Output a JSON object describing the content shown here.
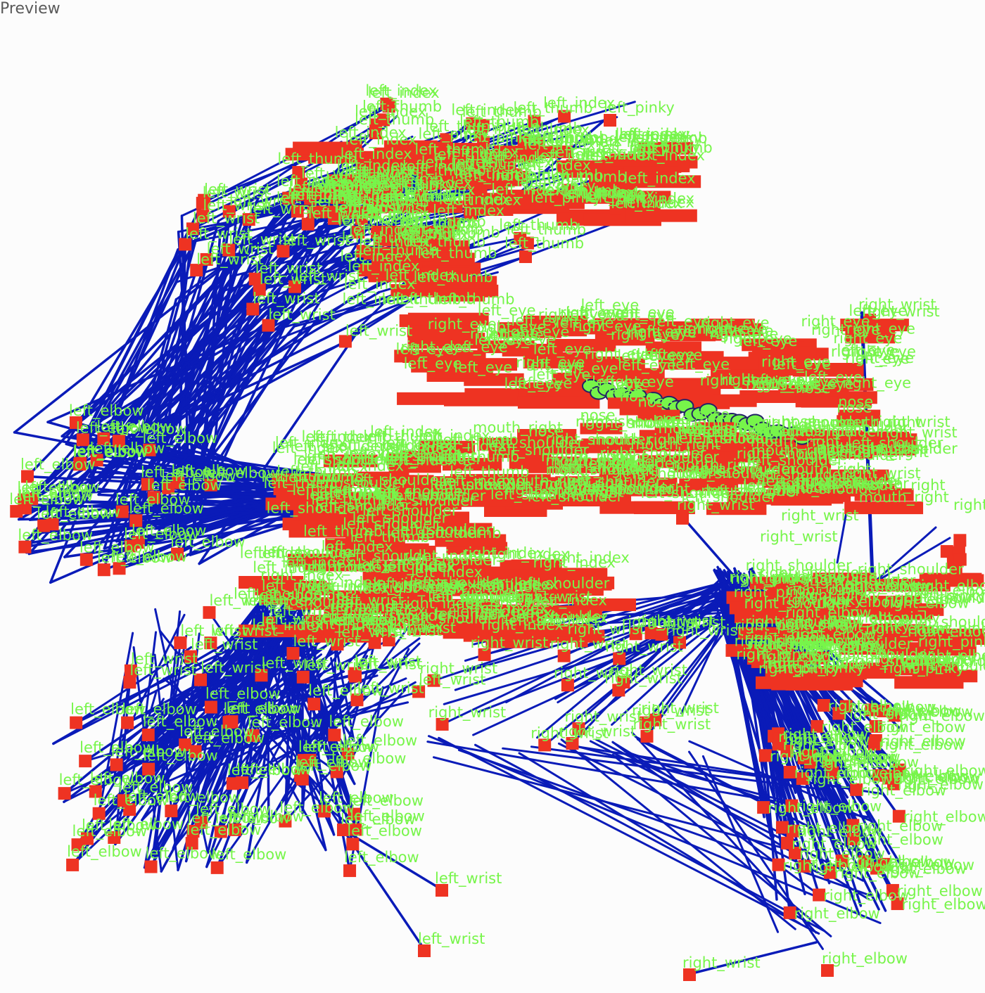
{
  "header": {
    "title": "Preview"
  },
  "colors": {
    "bone": "#0a1bb8",
    "joint": "#ee3322",
    "label": "#77f54a",
    "nose_ring": "#222266"
  },
  "labels": [
    {
      "text": "left_pinky"
    },
    {
      "text": "left_index"
    },
    {
      "text": "left_thumb"
    },
    {
      "text": "left_elbow"
    },
    {
      "text": "left_wrist"
    },
    {
      "text": "left_shoulder"
    },
    {
      "text": "right_wrist"
    },
    {
      "text": "right_elbow"
    },
    {
      "text": "right_index"
    },
    {
      "text": "right_shoulder"
    },
    {
      "text": "right_pinky"
    },
    {
      "text": "mouth_right"
    },
    {
      "text": "nose"
    },
    {
      "text": "left_eye"
    },
    {
      "text": "right_eye"
    }
  ]
}
